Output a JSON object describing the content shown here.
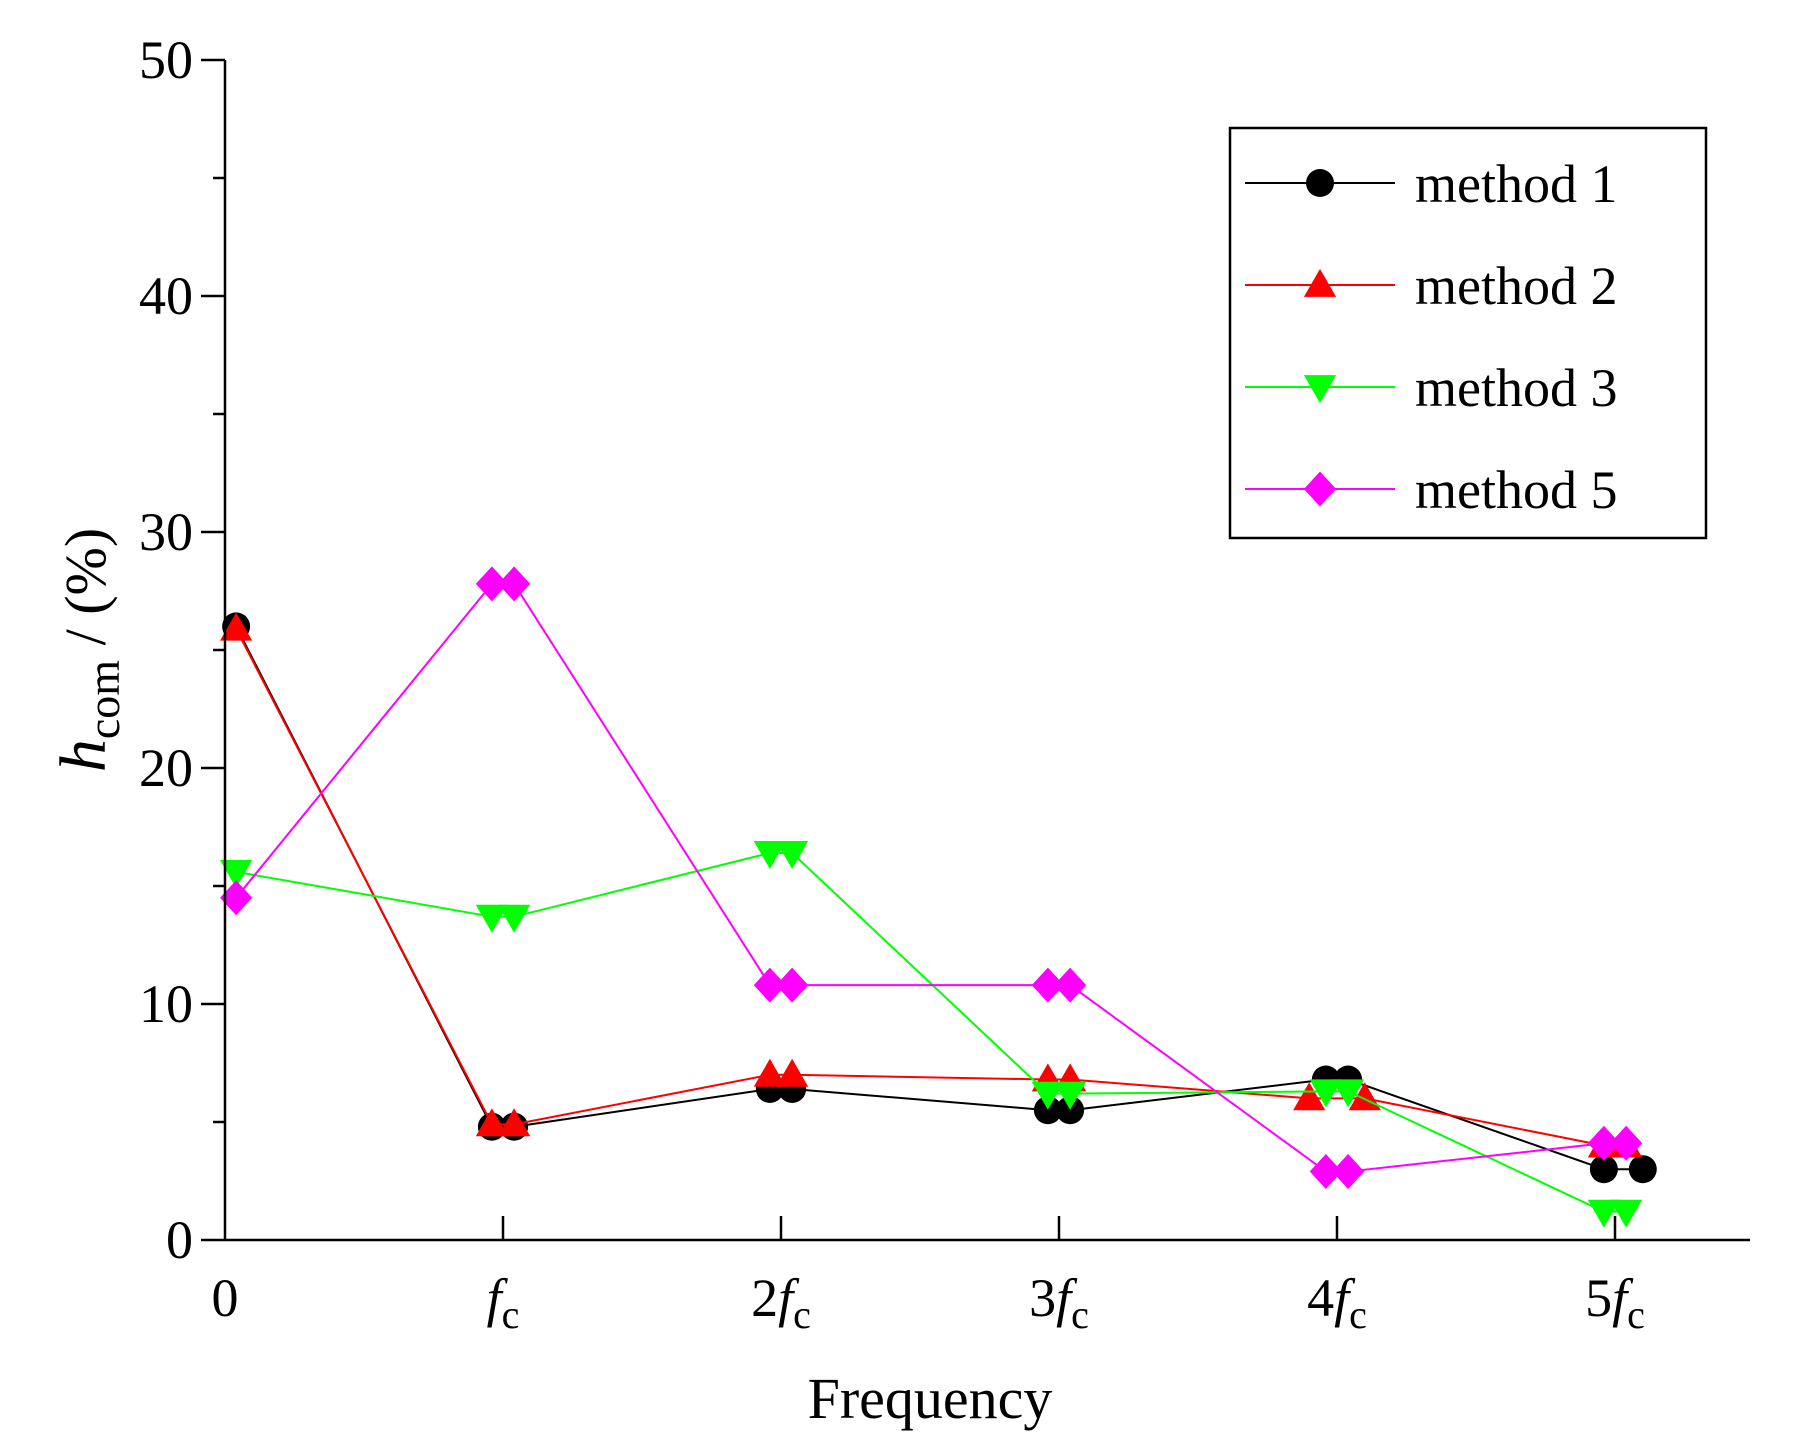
{
  "chart_data": {
    "type": "line",
    "title": "",
    "xlabel": "Frequency",
    "ylabel": {
      "main": "h",
      "sub": "com",
      "suffix": " / (%)"
    },
    "ylim": [
      0,
      50
    ],
    "yticks": [
      0,
      10,
      20,
      30,
      40,
      50
    ],
    "xlim": [
      0,
      5.5
    ],
    "xticks": [
      {
        "value": 0,
        "coef": "0",
        "sub": ""
      },
      {
        "value": 1,
        "coef": "",
        "sub": "c"
      },
      {
        "value": 2,
        "coef": "2",
        "sub": "c"
      },
      {
        "value": 3,
        "coef": "3",
        "sub": "c"
      },
      {
        "value": 4,
        "coef": "4",
        "sub": "c"
      },
      {
        "value": 5,
        "coef": "5",
        "sub": "c"
      }
    ],
    "tick_italic_symbol": "f",
    "legend_position": "top-right",
    "series": [
      {
        "name": "method 1",
        "color": "#000000",
        "marker": "circle",
        "points": [
          [
            0.04,
            26.0
          ],
          [
            0.96,
            4.8
          ],
          [
            1.04,
            4.8
          ],
          [
            1.96,
            6.4
          ],
          [
            2.04,
            6.4
          ],
          [
            2.96,
            5.5
          ],
          [
            3.04,
            5.5
          ],
          [
            3.96,
            6.8
          ],
          [
            4.04,
            6.8
          ],
          [
            4.96,
            3.0
          ],
          [
            5.1,
            3.0
          ]
        ]
      },
      {
        "name": "method 2",
        "color": "#ff0000",
        "marker": "triangle-up",
        "points": [
          [
            0.04,
            25.9
          ],
          [
            0.96,
            4.9
          ],
          [
            1.04,
            4.9
          ],
          [
            1.96,
            7.0
          ],
          [
            2.04,
            7.0
          ],
          [
            2.96,
            6.8
          ],
          [
            3.04,
            6.8
          ],
          [
            3.9,
            6.0
          ],
          [
            4.1,
            6.0
          ],
          [
            4.96,
            4.0
          ],
          [
            5.04,
            4.0
          ]
        ]
      },
      {
        "name": "method 3",
        "color": "#00ff00",
        "marker": "triangle-down",
        "points": [
          [
            0.04,
            15.6
          ],
          [
            0.96,
            13.7
          ],
          [
            1.04,
            13.7
          ],
          [
            1.96,
            16.4
          ],
          [
            2.04,
            16.4
          ],
          [
            2.96,
            6.2
          ],
          [
            3.04,
            6.2
          ],
          [
            3.96,
            6.3
          ],
          [
            4.04,
            6.3
          ],
          [
            4.96,
            1.2
          ],
          [
            5.04,
            1.2
          ]
        ]
      },
      {
        "name": "method 5",
        "color": "#ff00ff",
        "marker": "diamond",
        "points": [
          [
            0.04,
            14.5
          ],
          [
            0.96,
            27.8
          ],
          [
            1.04,
            27.8
          ],
          [
            1.96,
            10.8
          ],
          [
            2.04,
            10.8
          ],
          [
            2.96,
            10.8
          ],
          [
            3.04,
            10.8
          ],
          [
            3.96,
            2.9
          ],
          [
            4.04,
            2.9
          ],
          [
            4.96,
            4.1
          ],
          [
            5.04,
            4.1
          ]
        ]
      }
    ]
  }
}
